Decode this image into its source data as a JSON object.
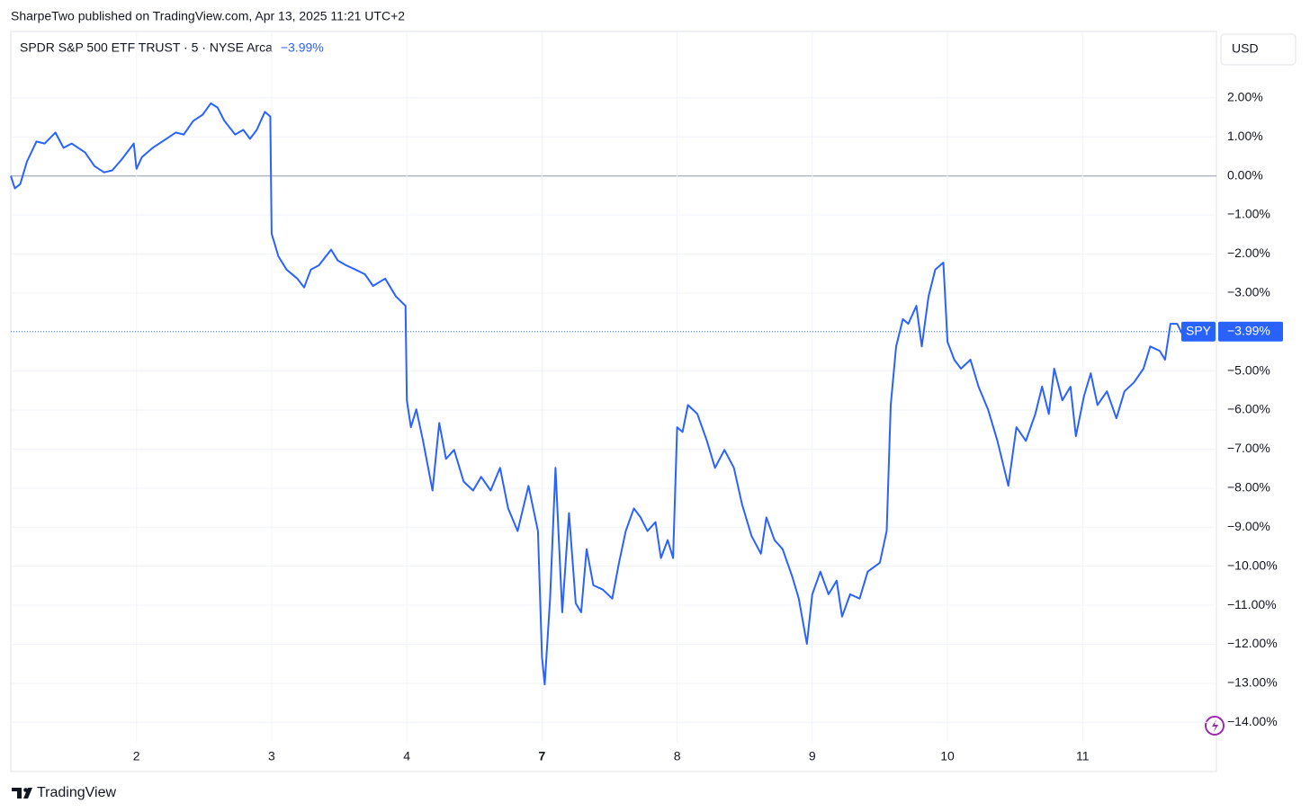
{
  "chart_data": {
    "type": "line",
    "publisher": "SharpeTwo published on TradingView.com, Apr 13, 2025 11:21 UTC+2",
    "title": "SPDR S&P 500 ETF TRUST · 5 · NYSE Arca",
    "currency": "USD",
    "brand": "TradingView",
    "current": {
      "name": "SPY",
      "value": -3.99,
      "label": "−3.99%"
    },
    "xlim": [
      0.07,
      8.99
    ],
    "xticks": [
      {
        "value": 1,
        "label": "2"
      },
      {
        "value": 2,
        "label": "3"
      },
      {
        "value": 3,
        "label": "4"
      },
      {
        "value": 4,
        "label": "7"
      },
      {
        "value": 5,
        "label": "8"
      },
      {
        "value": 6,
        "label": "9"
      },
      {
        "value": 7,
        "label": "10"
      },
      {
        "value": 8,
        "label": "11"
      }
    ],
    "ylim": [
      -14.5,
      3.7
    ],
    "yticks": [
      {
        "value": 2,
        "label": "2.00%"
      },
      {
        "value": 1,
        "label": "1.00%"
      },
      {
        "value": 0,
        "label": "0.00%"
      },
      {
        "value": -1,
        "label": "−1.00%"
      },
      {
        "value": -2,
        "label": "−2.00%"
      },
      {
        "value": -3,
        "label": "−3.00%"
      },
      {
        "value": -4,
        "label": "−4.00%"
      },
      {
        "value": -5,
        "label": "−5.00%"
      },
      {
        "value": -6,
        "label": "−6.00%"
      },
      {
        "value": -7,
        "label": "−7.00%"
      },
      {
        "value": -8,
        "label": "−8.00%"
      },
      {
        "value": -9,
        "label": "−9.00%"
      },
      {
        "value": -10,
        "label": "−10.00%"
      },
      {
        "value": -11,
        "label": "−11.00%"
      },
      {
        "value": -12,
        "label": "−12.00%"
      },
      {
        "value": -13,
        "label": "−13.00%"
      },
      {
        "value": -14,
        "label": "−14.00%"
      }
    ],
    "grid": true,
    "series": [
      {
        "name": "SPY",
        "color": "#2962ff",
        "x": [
          0.07,
          0.1,
          0.14,
          0.19,
          0.26,
          0.32,
          0.4,
          0.46,
          0.52,
          0.62,
          0.69,
          0.76,
          0.82,
          0.89,
          0.98,
          1.0,
          1.04,
          1.12,
          1.22,
          1.29,
          1.35,
          1.42,
          1.49,
          1.55,
          1.6,
          1.65,
          1.73,
          1.79,
          1.84,
          1.89,
          1.95,
          1.99,
          2.0,
          2.05,
          2.11,
          2.19,
          2.24,
          2.29,
          2.35,
          2.44,
          2.49,
          2.55,
          2.62,
          2.69,
          2.75,
          2.84,
          2.92,
          2.99,
          3.0,
          3.03,
          3.07,
          3.12,
          3.19,
          3.24,
          3.29,
          3.35,
          3.42,
          3.49,
          3.55,
          3.62,
          3.69,
          3.75,
          3.82,
          3.9,
          3.97,
          4.0,
          4.02,
          4.06,
          4.1,
          4.15,
          4.2,
          4.25,
          4.29,
          4.33,
          4.38,
          4.45,
          4.52,
          4.57,
          4.62,
          4.68,
          4.73,
          4.78,
          4.84,
          4.88,
          4.93,
          4.97,
          5.0,
          5.04,
          5.08,
          5.15,
          5.22,
          5.28,
          5.35,
          5.42,
          5.48,
          5.55,
          5.62,
          5.66,
          5.72,
          5.78,
          5.85,
          5.9,
          5.96,
          6.0,
          6.06,
          6.12,
          6.18,
          6.22,
          6.28,
          6.35,
          6.41,
          6.5,
          6.55,
          6.58,
          6.62,
          6.67,
          6.71,
          6.77,
          6.81,
          6.86,
          6.91,
          6.97,
          7.0,
          7.05,
          7.1,
          7.17,
          7.23,
          7.3,
          7.37,
          7.45,
          7.51,
          7.58,
          7.65,
          7.7,
          7.75,
          7.79,
          7.85,
          7.91,
          7.95,
          8.01,
          8.06,
          8.11,
          8.18,
          8.25,
          8.31,
          8.38,
          8.45,
          8.5,
          8.57,
          8.61,
          8.65,
          8.7,
          8.75,
          8.79,
          8.83
        ],
        "values": [
          0,
          -0.32,
          -0.21,
          0.37,
          0.88,
          0.83,
          1.11,
          0.72,
          0.83,
          0.6,
          0.25,
          0.09,
          0.14,
          0.42,
          0.83,
          0.18,
          0.48,
          0.72,
          0.95,
          1.11,
          1.06,
          1.41,
          1.57,
          1.86,
          1.75,
          1.41,
          1.06,
          1.18,
          0.95,
          1.18,
          1.64,
          1.52,
          -1.48,
          -2.06,
          -2.4,
          -2.63,
          -2.86,
          -2.4,
          -2.29,
          -1.89,
          -2.17,
          -2.29,
          -2.4,
          -2.52,
          -2.82,
          -2.63,
          -3.09,
          -3.33,
          -5.75,
          -6.44,
          -5.98,
          -6.79,
          -8.06,
          -6.33,
          -7.25,
          -7.02,
          -7.83,
          -8.06,
          -7.71,
          -8.06,
          -7.48,
          -8.52,
          -9.1,
          -7.94,
          -9.1,
          -12.33,
          -13.03,
          -10.83,
          -7.48,
          -11.18,
          -8.64,
          -10.95,
          -11.18,
          -9.56,
          -10.49,
          -10.6,
          -10.83,
          -9.91,
          -9.1,
          -8.52,
          -8.75,
          -9.1,
          -8.87,
          -9.79,
          -9.33,
          -9.79,
          -6.44,
          -6.56,
          -5.87,
          -6.1,
          -6.79,
          -7.48,
          -7.02,
          -7.48,
          -8.41,
          -9.22,
          -9.68,
          -8.75,
          -9.33,
          -9.56,
          -10.25,
          -10.83,
          -11.99,
          -10.72,
          -10.14,
          -10.72,
          -10.37,
          -11.29,
          -10.72,
          -10.83,
          -10.14,
          -9.91,
          -9.1,
          -5.87,
          -4.37,
          -3.67,
          -3.79,
          -3.33,
          -4.37,
          -3.09,
          -2.4,
          -2.22,
          -4.25,
          -4.71,
          -4.94,
          -4.71,
          -5.4,
          -5.98,
          -6.79,
          -7.94,
          -6.44,
          -6.79,
          -6.1,
          -5.4,
          -6.1,
          -4.94,
          -5.75,
          -5.4,
          -6.67,
          -5.64,
          -5.06,
          -5.87,
          -5.52,
          -6.21,
          -5.52,
          -5.29,
          -4.94,
          -4.37,
          -4.48,
          -4.71,
          -3.79,
          -3.79,
          -4.14,
          -4.14,
          -3.99
        ]
      }
    ]
  }
}
